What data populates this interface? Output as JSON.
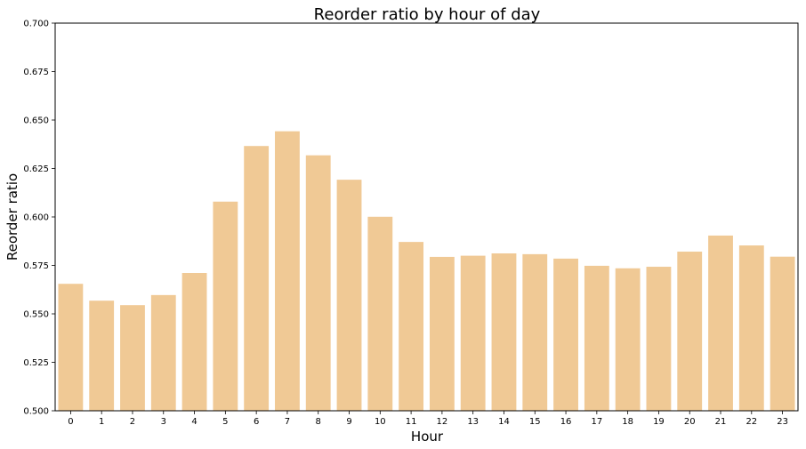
{
  "chart_data": {
    "type": "bar",
    "title": "Reorder ratio by hour of day",
    "xlabel": "Hour",
    "ylabel": "Reorder ratio",
    "categories": [
      "0",
      "1",
      "2",
      "3",
      "4",
      "5",
      "6",
      "7",
      "8",
      "9",
      "10",
      "11",
      "12",
      "13",
      "14",
      "15",
      "16",
      "17",
      "18",
      "19",
      "20",
      "21",
      "22",
      "23"
    ],
    "values": [
      0.5655,
      0.5568,
      0.5545,
      0.5597,
      0.5711,
      0.6079,
      0.6366,
      0.6442,
      0.6318,
      0.6192,
      0.6001,
      0.5871,
      0.5794,
      0.58,
      0.5812,
      0.5808,
      0.5785,
      0.5748,
      0.5735,
      0.5743,
      0.5821,
      0.5904,
      0.5853,
      0.5795
    ],
    "ylim": [
      0.5,
      0.7
    ],
    "yticks": [
      0.5,
      0.525,
      0.55,
      0.575,
      0.6,
      0.625,
      0.65,
      0.675,
      0.7
    ],
    "ytick_labels": [
      "0.500",
      "0.525",
      "0.550",
      "0.575",
      "0.600",
      "0.625",
      "0.650",
      "0.675",
      "0.700"
    ],
    "bar_color": "#f0c995",
    "grid": false,
    "legend": "none"
  }
}
